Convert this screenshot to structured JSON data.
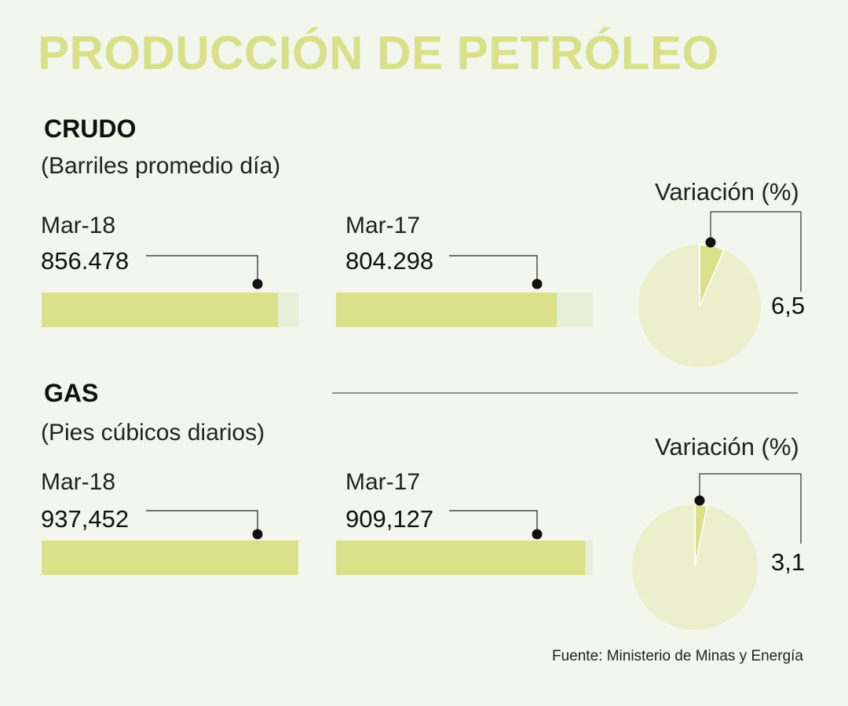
{
  "title": "PRODUCCIÓN DE PETRÓLEO",
  "source": "Fuente: Ministerio de Minas y Energía",
  "colors": {
    "background": "#f2f6ec",
    "title": "#d8e08a",
    "bar_fill": "#dbe08a",
    "bar_track": "#e6efd8",
    "pie_base": "#ebefcb",
    "pie_slice": "#dbe08a"
  },
  "chart_data": [
    {
      "type": "bar",
      "name": "CRUDO",
      "unit": "(Barriles promedio día)",
      "categories": [
        "Mar-18",
        "Mar-17"
      ],
      "value_labels": [
        "856.478",
        "804.298"
      ],
      "values": [
        856478,
        804298
      ],
      "bar_fill_fraction": [
        0.92,
        0.86
      ],
      "variation_label": "Variación (%)",
      "variation_text": "6,5",
      "variation_value": 6.5
    },
    {
      "type": "bar",
      "name": "GAS",
      "unit": "(Pies cúbicos diarios)",
      "categories": [
        "Mar-18",
        "Mar-17"
      ],
      "value_labels": [
        "937,452",
        "909,127"
      ],
      "values": [
        937452,
        909127
      ],
      "bar_fill_fraction": [
        1.0,
        0.97
      ],
      "variation_label": "Variación (%)",
      "variation_text": "3,1",
      "variation_value": 3.1
    }
  ]
}
